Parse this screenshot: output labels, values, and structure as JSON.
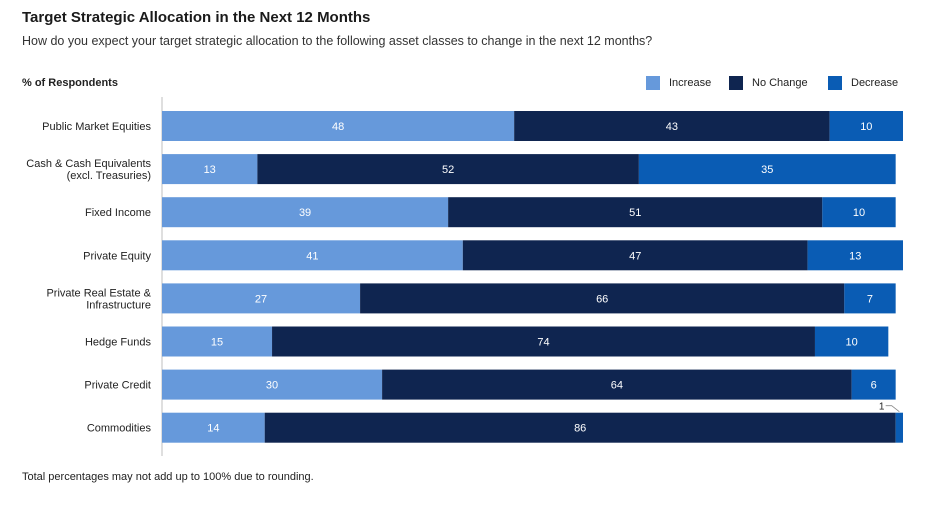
{
  "chart_data": {
    "type": "bar",
    "orientation": "horizontal",
    "stacked": true,
    "title": "Target Strategic Allocation in the Next 12 Months",
    "subtitle": "How do you expect your target strategic allocation to the following asset classes to change in the next 12 months?",
    "ylabel": "% of Respondents",
    "xlim": [
      0,
      101
    ],
    "categories": [
      [
        "Public Market Equities"
      ],
      [
        "Cash & Cash Equivalents",
        "(excl. Treasuries)"
      ],
      [
        "Fixed Income"
      ],
      [
        "Private Equity"
      ],
      [
        "Private Real Estate &",
        "Infrastructure"
      ],
      [
        "Hedge Funds"
      ],
      [
        "Private Credit"
      ],
      [
        "Commodities"
      ]
    ],
    "series": [
      {
        "name": "Increase",
        "color": "#6699db",
        "values": [
          48,
          13,
          39,
          41,
          27,
          15,
          30,
          14
        ]
      },
      {
        "name": "No Change",
        "color": "#0f2550",
        "values": [
          43,
          52,
          51,
          47,
          66,
          74,
          64,
          86
        ]
      },
      {
        "name": "Decrease",
        "color": "#0a5cb4",
        "values": [
          10,
          35,
          10,
          13,
          7,
          10,
          6,
          1
        ]
      }
    ],
    "legend_position": "top-right",
    "footnote": "Total percentages may not add up to 100% due to rounding."
  }
}
